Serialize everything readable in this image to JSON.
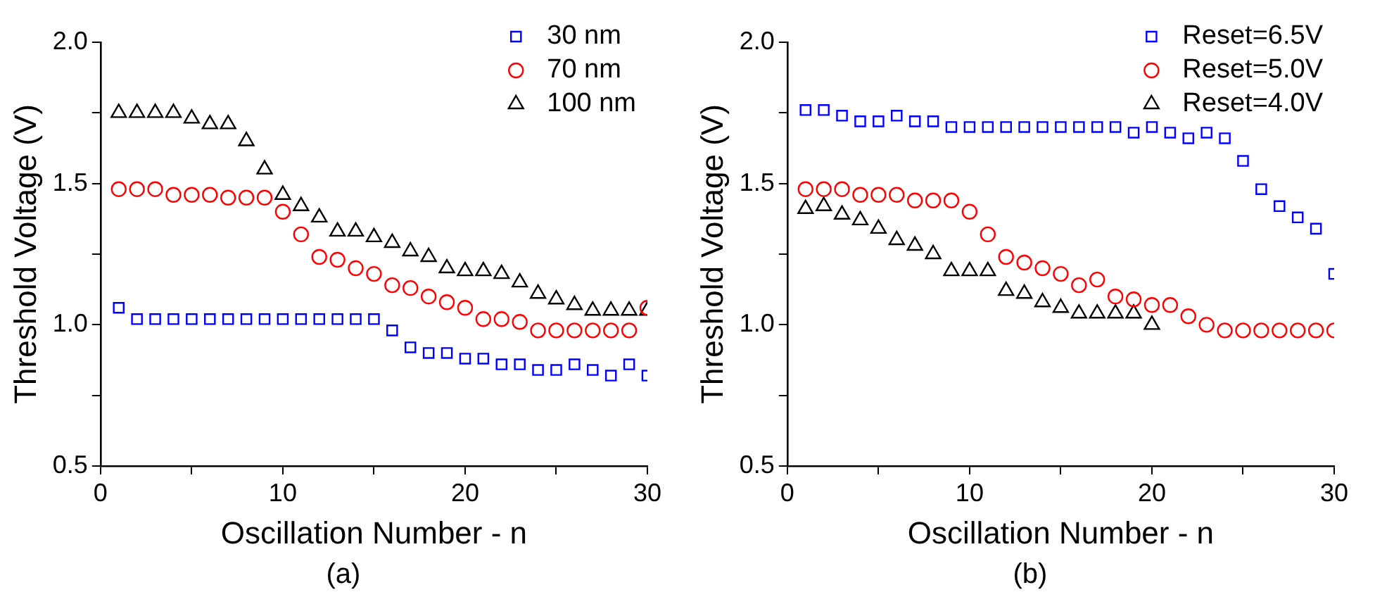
{
  "chart_data": [
    {
      "type": "scatter",
      "xlabel": "Oscillation Number - n",
      "ylabel": "Threshold Voltage (V)",
      "annotations": [
        "(a)"
      ],
      "x": [
        1,
        2,
        3,
        4,
        5,
        6,
        7,
        8,
        9,
        10,
        11,
        12,
        13,
        14,
        15,
        16,
        17,
        18,
        19,
        20,
        21,
        22,
        23,
        24,
        25,
        26,
        27,
        28,
        29,
        30
      ],
      "xlim": [
        0,
        30
      ],
      "xticks": [
        0,
        {
          "value": 5,
          "label": null
        },
        10,
        {
          "value": 15,
          "label": null
        },
        20,
        {
          "value": 25,
          "label": null
        },
        30
      ],
      "ylim": [
        0.5,
        2.0
      ],
      "yticks": [
        {
          "value": 0.5,
          "label": "0.5"
        },
        {
          "value": 0.75,
          "label": null
        },
        {
          "value": 1.0,
          "label": "1.0"
        },
        {
          "value": 1.25,
          "label": null
        },
        {
          "value": 1.5,
          "label": "1.5"
        },
        {
          "value": 1.75,
          "label": null
        },
        {
          "value": 2.0,
          "label": "2.0"
        }
      ],
      "grid": false,
      "legend": "top right",
      "series": [
        {
          "name": "30 nm",
          "color": "#0000ff",
          "marker": "square",
          "values": [
            1.06,
            1.02,
            1.02,
            1.02,
            1.02,
            1.02,
            1.02,
            1.02,
            1.02,
            1.02,
            1.02,
            1.02,
            1.02,
            1.02,
            1.02,
            0.98,
            0.92,
            0.9,
            0.9,
            0.88,
            0.88,
            0.86,
            0.86,
            0.84,
            0.84,
            0.86,
            0.84,
            0.82,
            0.86,
            0.82
          ]
        },
        {
          "name": "70 nm",
          "color": "#ff0000",
          "marker": "circle",
          "values": [
            1.48,
            1.48,
            1.48,
            1.46,
            1.46,
            1.46,
            1.45,
            1.45,
            1.45,
            1.4,
            1.32,
            1.24,
            1.23,
            1.2,
            1.18,
            1.14,
            1.13,
            1.1,
            1.08,
            1.06,
            1.02,
            1.02,
            1.01,
            0.98,
            0.98,
            0.98,
            0.98,
            0.98,
            0.98,
            1.06
          ]
        },
        {
          "name": "100 nm",
          "color": "#000000",
          "marker": "triangle",
          "values": [
            1.75,
            1.75,
            1.75,
            1.75,
            1.73,
            1.71,
            1.71,
            1.65,
            1.55,
            1.46,
            1.42,
            1.38,
            1.33,
            1.33,
            1.31,
            1.29,
            1.26,
            1.24,
            1.2,
            1.19,
            1.19,
            1.18,
            1.15,
            1.11,
            1.09,
            1.07,
            1.05,
            1.05,
            1.05,
            1.05
          ]
        }
      ]
    },
    {
      "type": "scatter",
      "xlabel": "Oscillation Number - n",
      "ylabel": "Threshold Voltage (V)",
      "annotations": [
        "(b)"
      ],
      "x": [
        1,
        2,
        3,
        4,
        5,
        6,
        7,
        8,
        9,
        10,
        11,
        12,
        13,
        14,
        15,
        16,
        17,
        18,
        19,
        20,
        21,
        22,
        23,
        24,
        25,
        26,
        27,
        28,
        29,
        30
      ],
      "xlim": [
        0,
        30
      ],
      "xticks": [
        0,
        {
          "value": 5,
          "label": null
        },
        10,
        {
          "value": 15,
          "label": null
        },
        20,
        {
          "value": 25,
          "label": null
        },
        30
      ],
      "ylim": [
        0.5,
        2.0
      ],
      "yticks": [
        {
          "value": 0.5,
          "label": "0.5"
        },
        {
          "value": 0.75,
          "label": null
        },
        {
          "value": 1.0,
          "label": "1.0"
        },
        {
          "value": 1.25,
          "label": null
        },
        {
          "value": 1.5,
          "label": "1.5"
        },
        {
          "value": 1.75,
          "label": null
        },
        {
          "value": 2.0,
          "label": "2.0"
        }
      ],
      "grid": false,
      "legend": "top right",
      "series": [
        {
          "name": "Reset=6.5V",
          "color": "#0000ff",
          "marker": "square",
          "values": [
            1.76,
            1.76,
            1.74,
            1.72,
            1.72,
            1.74,
            1.72,
            1.72,
            1.7,
            1.7,
            1.7,
            1.7,
            1.7,
            1.7,
            1.7,
            1.7,
            1.7,
            1.7,
            1.68,
            1.7,
            1.68,
            1.66,
            1.68,
            1.66,
            1.58,
            1.48,
            1.42,
            1.38,
            1.34,
            1.18
          ]
        },
        {
          "name": "Reset=5.0V",
          "color": "#ff0000",
          "marker": "circle",
          "values": [
            1.48,
            1.48,
            1.48,
            1.46,
            1.46,
            1.46,
            1.44,
            1.44,
            1.44,
            1.4,
            1.32,
            1.24,
            1.22,
            1.2,
            1.18,
            1.14,
            1.16,
            1.1,
            1.09,
            1.07,
            1.07,
            1.03,
            1.0,
            0.98,
            0.98,
            0.98,
            0.98,
            0.98,
            0.98,
            0.98
          ]
        },
        {
          "name": "Reset=4.0V",
          "color": "#000000",
          "marker": "triangle",
          "values": [
            1.41,
            1.42,
            1.39,
            1.37,
            1.34,
            1.3,
            1.28,
            1.25,
            1.19,
            1.19,
            1.19,
            1.12,
            1.11,
            1.08,
            1.06,
            1.04,
            1.04,
            1.04,
            1.04,
            1.0,
            null,
            null,
            null,
            null,
            null,
            null,
            null,
            null,
            null,
            null
          ]
        }
      ]
    }
  ]
}
